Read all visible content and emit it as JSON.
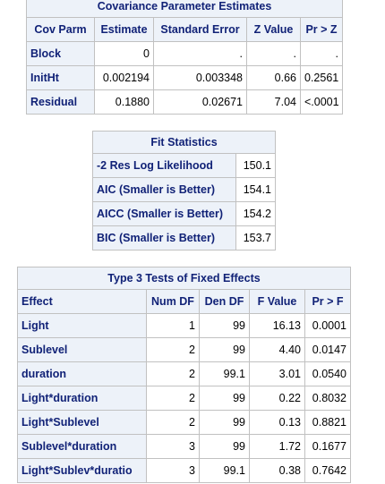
{
  "cov_table": {
    "title": "Covariance Parameter Estimates",
    "columns": [
      "Cov Parm",
      "Estimate",
      "Standard Error",
      "Z Value",
      "Pr > Z"
    ],
    "rows": [
      {
        "label": "Block",
        "cells": [
          "0",
          ".",
          ".",
          "."
        ]
      },
      {
        "label": "InitHt",
        "cells": [
          "0.002194",
          "0.003348",
          "0.66",
          "0.2561"
        ]
      },
      {
        "label": "Residual",
        "cells": [
          "0.1880",
          "0.02671",
          "7.04",
          "<.0001"
        ]
      }
    ]
  },
  "fit_table": {
    "title": "Fit Statistics",
    "rows": [
      {
        "label": "-2 Res Log Likelihood",
        "value": "150.1"
      },
      {
        "label": "AIC (Smaller is Better)",
        "value": "154.1"
      },
      {
        "label": "AICC (Smaller is Better)",
        "value": "154.2"
      },
      {
        "label": "BIC (Smaller is Better)",
        "value": "153.7"
      }
    ]
  },
  "type3_table": {
    "title": "Type 3 Tests of Fixed Effects",
    "columns": [
      "Effect",
      "Num DF",
      "Den DF",
      "F Value",
      "Pr > F"
    ],
    "rows": [
      {
        "label": "Light",
        "cells": [
          "1",
          "99",
          "16.13",
          "0.0001"
        ]
      },
      {
        "label": "Sublevel",
        "cells": [
          "2",
          "99",
          "4.40",
          "0.0147"
        ]
      },
      {
        "label": "duration",
        "cells": [
          "2",
          "99.1",
          "3.01",
          "0.0540"
        ]
      },
      {
        "label": "Light*duration",
        "cells": [
          "2",
          "99",
          "0.22",
          "0.8032"
        ]
      },
      {
        "label": "Light*Sublevel",
        "cells": [
          "2",
          "99",
          "0.13",
          "0.8821"
        ]
      },
      {
        "label": "Sublevel*duration",
        "cells": [
          "3",
          "99",
          "1.72",
          "0.1677"
        ]
      },
      {
        "label": "Light*Sublev*duratio",
        "cells": [
          "3",
          "99.1",
          "0.38",
          "0.7642"
        ]
      }
    ]
  }
}
